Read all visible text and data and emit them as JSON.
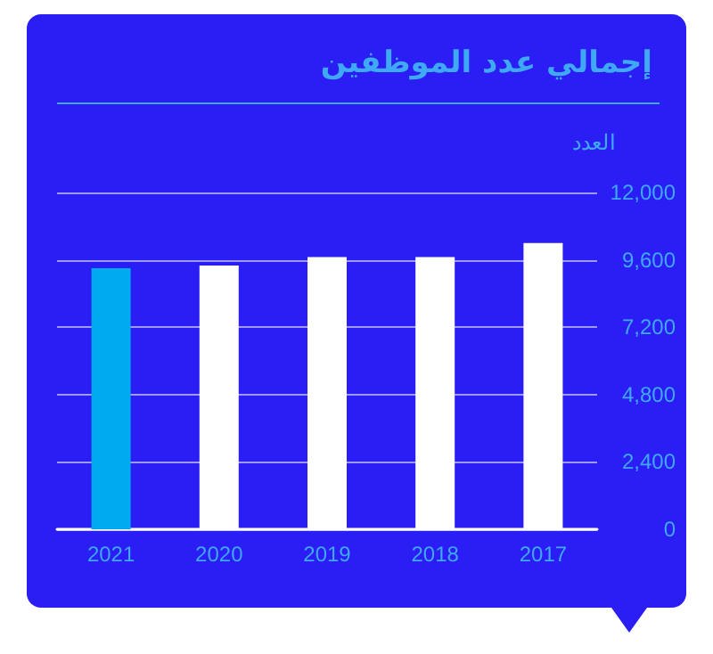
{
  "chart_data": {
    "type": "bar",
    "title": "إجمالي عدد الموظفين",
    "ylabel": "العدد",
    "categories": [
      "2021",
      "2020",
      "2019",
      "2018",
      "2017"
    ],
    "values": [
      9300,
      9400,
      9700,
      9700,
      10200
    ],
    "colors": [
      "#00aaf0",
      "#ffffff",
      "#ffffff",
      "#ffffff",
      "#ffffff"
    ],
    "ylim": [
      0,
      12000
    ],
    "yticks": [
      0,
      {
        "value": 2400,
        "label": "2,400"
      },
      {
        "value": 4800,
        "label": "4,800"
      },
      {
        "value": 7200,
        "label": "7,200"
      },
      {
        "value": 9600,
        "label": "9,600"
      },
      {
        "value": 12000,
        "label": "12,000"
      }
    ],
    "grid": "y"
  }
}
